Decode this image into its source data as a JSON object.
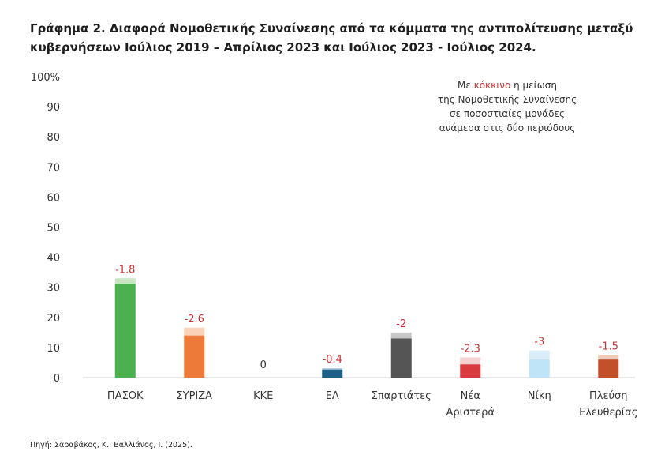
{
  "title": "Γράφημα 2. Διαφορά Νομοθετικής Συναίνεσης από τα κόμματα της αντιπολίτευσης μεταξύ κυβερνήσεων Ιούλιος 2019 – Απρίλιος 2023 και Ιούλιος 2023 - Ιούλιος 2024.",
  "annotation": {
    "line1_pre": "Με ",
    "line1_red": "κόκκινο",
    "line1_post": " η μείωση",
    "line2": "της Νομοθετικής Συναίνεσης",
    "line3": "σε ποσοστιαίες μονάδες",
    "line4": "ανάμεσα στις δύο περιόδους"
  },
  "source": "Πηγή: Σαραβάκος, Κ., Βαλλιάνος, Ι. (2025).",
  "colors": {
    "reduction_text": "#cc3333",
    "zero_text": "#333333",
    "axis": "#cfcfcf"
  },
  "chart_data": {
    "type": "bar",
    "ylim": [
      0,
      100
    ],
    "yticks": [
      "100%",
      "90",
      "80",
      "70",
      "60",
      "50",
      "40",
      "30",
      "20",
      "10",
      "0"
    ],
    "ytick_values": [
      100,
      90,
      80,
      70,
      60,
      50,
      40,
      30,
      20,
      10,
      0
    ],
    "grid": false,
    "categories": [
      "ΠΑΣΟΚ",
      "ΣΥΡΙΖΑ",
      "ΚΚΕ",
      "ΕΛ",
      "Σπαρτιάτες",
      "Νέα Αριστερά",
      "Νίκη",
      "Πλεύση Ελευθερίας"
    ],
    "category_lines": [
      [
        "ΠΑΣΟΚ"
      ],
      [
        "ΣΥΡΙΖΑ"
      ],
      [
        "ΚΚΕ"
      ],
      [
        "ΕΛ"
      ],
      [
        "Σπαρτιάτες"
      ],
      [
        "Νέα",
        "Αριστερά"
      ],
      [
        "Νίκη"
      ],
      [
        "Πλεύση",
        "Ελευθερίας"
      ]
    ],
    "values": [
      31.2,
      14.0,
      0,
      2.7,
      13.0,
      4.4,
      6.0,
      6.0
    ],
    "reduction": [
      1.8,
      2.6,
      0,
      0.4,
      2.0,
      2.3,
      3.0,
      1.5
    ],
    "labels": [
      "-1.8",
      "-2.6",
      "0",
      "-0.4",
      "-2",
      "-2.3",
      "-3",
      "-1.5"
    ],
    "colors": [
      "#4caf50",
      "#ee7a3a",
      "#999999",
      "#1e5f86",
      "#555555",
      "#d93a3f",
      "#bfe3f7",
      "#c2502a"
    ],
    "light_colors": [
      "#c8e6c2",
      "#f9d2b8",
      "#dddddd",
      "#a7c5d8",
      "#c8c8c8",
      "#f5d0d0",
      "#d9eef9",
      "#f0cbb8"
    ]
  }
}
